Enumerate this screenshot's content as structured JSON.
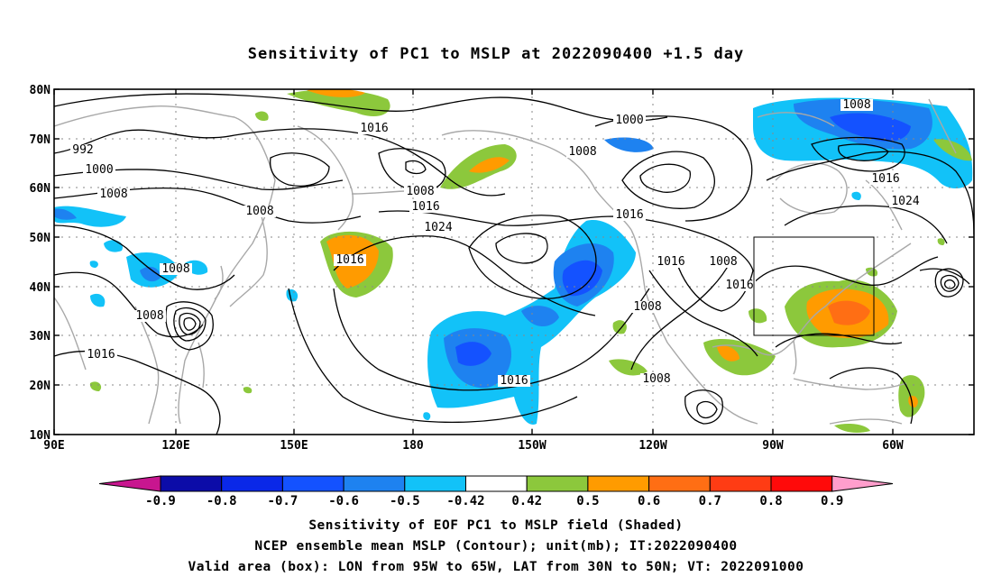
{
  "title": "Sensitivity of PC1 to MSLP at 2022090400 +1.5 day",
  "map": {
    "lon_range": [
      "90E",
      "50W"
    ],
    "lat_range": [
      "10N",
      "80N"
    ],
    "lat_ticks": [
      "80N",
      "70N",
      "60N",
      "50N",
      "40N",
      "30N",
      "20N",
      "10N"
    ],
    "lon_ticks": [
      "90E",
      "120E",
      "150E",
      "180",
      "150W",
      "120W",
      "90W",
      "60W"
    ],
    "grid": "dotted",
    "coastline_color": "#a8a8a8",
    "contour_color": "#000000",
    "contour_labels": [
      {
        "text": "992"
      },
      {
        "text": "1000"
      },
      {
        "text": "1008"
      },
      {
        "text": "1008"
      },
      {
        "text": "1008"
      },
      {
        "text": "1016"
      },
      {
        "text": "1008"
      },
      {
        "text": "1016"
      },
      {
        "text": "1016"
      },
      {
        "text": "1024"
      },
      {
        "text": "1016"
      },
      {
        "text": "1008"
      },
      {
        "text": "1016"
      },
      {
        "text": "1000"
      },
      {
        "text": "1008"
      },
      {
        "text": "1016"
      },
      {
        "text": "1016"
      },
      {
        "text": "1008"
      },
      {
        "text": "1016"
      },
      {
        "text": "1008"
      },
      {
        "text": "1008"
      },
      {
        "text": "1008"
      },
      {
        "text": "1016"
      },
      {
        "text": "1024"
      }
    ],
    "valid_box": {
      "lon": [
        "95W",
        "65W"
      ],
      "lat": [
        "30N",
        "50N"
      ]
    }
  },
  "colorbar": {
    "labels": [
      "-0.9",
      "-0.8",
      "-0.7",
      "-0.6",
      "-0.5",
      "-0.42",
      "0.42",
      "0.5",
      "0.6",
      "0.7",
      "0.8",
      "0.9"
    ],
    "colors": [
      "#c8168f",
      "#0c0ca8",
      "#0a28e8",
      "#1452ff",
      "#1e82f0",
      "#12c2f8",
      "#ffffff",
      "#8cc83c",
      "#ff9b00",
      "#ff6e14",
      "#ff3c14",
      "#ff0a0a",
      "#ff9ecc"
    ]
  },
  "captions": {
    "line1": "Sensitivity of EOF PC1 to MSLP field (Shaded)",
    "line2": "NCEP ensemble mean MSLP (Contour); unit(mb); IT:2022090400",
    "line3": "Valid area (box): LON from 95W to 65W, LAT from 30N to 50N; VT: 2022091000"
  }
}
